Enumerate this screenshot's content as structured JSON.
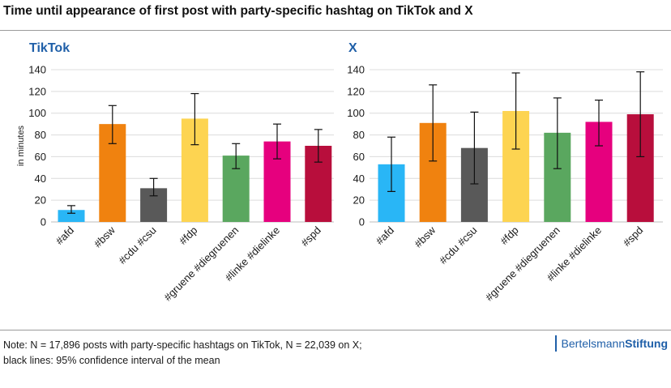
{
  "title": "Time until appearance of first post with party-specific hashtag on TikTok and X",
  "chart_data": [
    {
      "type": "bar",
      "title": "TikTok",
      "ylabel": "in minutes",
      "xlabel": "",
      "ylim": [
        0,
        140
      ],
      "yticks": [
        0,
        20,
        40,
        60,
        80,
        100,
        120,
        140
      ],
      "grid": true,
      "categories": [
        "#afd",
        "#bsw",
        "#cdu #csu",
        "#fdp",
        "#gruene #diegruenen",
        "#linke #dielinke",
        "#spd"
      ],
      "values": [
        11,
        90,
        31,
        95,
        61,
        74,
        70
      ],
      "ci_low": [
        8,
        72,
        24,
        71,
        49,
        58,
        55
      ],
      "ci_high": [
        15,
        107,
        40,
        118,
        72,
        90,
        85
      ],
      "colors": [
        "#29b6f6",
        "#f0820f",
        "#595959",
        "#fdd451",
        "#5aa75f",
        "#e6007e",
        "#b80e3c"
      ]
    },
    {
      "type": "bar",
      "title": "X",
      "ylabel": "",
      "xlabel": "",
      "ylim": [
        0,
        140
      ],
      "yticks": [
        0,
        20,
        40,
        60,
        80,
        100,
        120,
        140
      ],
      "grid": true,
      "categories": [
        "#afd",
        "#bsw",
        "#cdu #csu",
        "#fdp",
        "#gruene #diegruenen",
        "#linke #dielinke",
        "#spd"
      ],
      "values": [
        53,
        91,
        68,
        102,
        82,
        92,
        99
      ],
      "ci_low": [
        28,
        56,
        35,
        67,
        49,
        70,
        60
      ],
      "ci_high": [
        78,
        126,
        101,
        137,
        114,
        112,
        138
      ],
      "colors": [
        "#29b6f6",
        "#f0820f",
        "#595959",
        "#fdd451",
        "#5aa75f",
        "#e6007e",
        "#b80e3c"
      ]
    }
  ],
  "note_line1": "Note: N = 17,896 posts with party-specific hashtags on TikTok, N = 22,039 on X;",
  "note_line2": "black lines: 95% confidence interval of the mean",
  "brand": {
    "part1": "Bertelsmann",
    "part2": "Stiftung"
  }
}
